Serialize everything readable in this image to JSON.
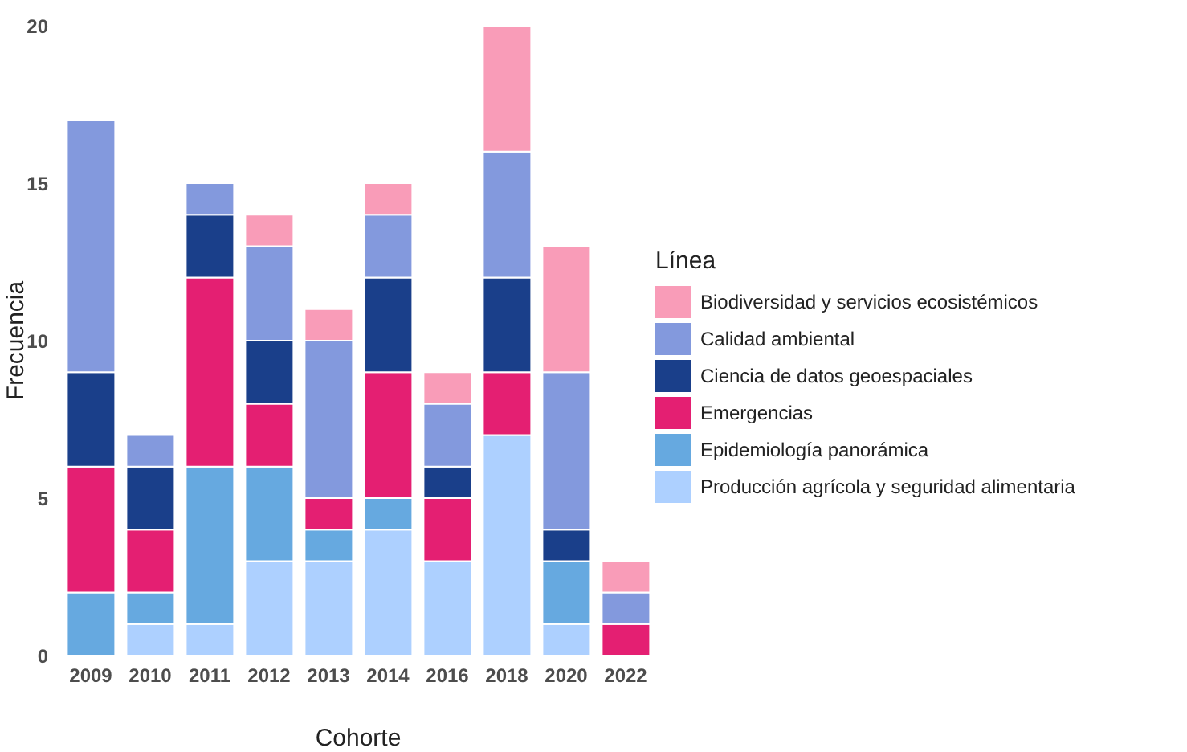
{
  "chart_data": {
    "type": "bar",
    "stacked": true,
    "xlabel": "Cohorte",
    "ylabel": "Frecuencia",
    "legend_title": "Línea",
    "legend": "right",
    "grid": false,
    "categories": [
      "2009",
      "2010",
      "2011",
      "2012",
      "2013",
      "2014",
      "2016",
      "2018",
      "2020",
      "2022"
    ],
    "ylim": [
      0,
      20
    ],
    "yticks": [
      0,
      5,
      10,
      15,
      20
    ],
    "series": [
      {
        "name": "Producción agrícola y seguridad alimentaria",
        "color": "#add0ff",
        "values": [
          0,
          1,
          1,
          3,
          3,
          4,
          3,
          7,
          1,
          0
        ]
      },
      {
        "name": "Epidemiología panorámica",
        "color": "#66a9e0",
        "values": [
          2,
          1,
          5,
          3,
          1,
          1,
          0,
          0,
          2,
          0
        ]
      },
      {
        "name": "Emergencias",
        "color": "#e41f72",
        "values": [
          4,
          2,
          6,
          2,
          1,
          4,
          2,
          2,
          0,
          1
        ]
      },
      {
        "name": "Ciencia de datos geoespaciales",
        "color": "#1a3f8a",
        "values": [
          3,
          2,
          2,
          2,
          0,
          3,
          1,
          3,
          1,
          0
        ]
      },
      {
        "name": "Calidad ambiental",
        "color": "#8399dd",
        "values": [
          8,
          1,
          1,
          3,
          5,
          2,
          2,
          4,
          5,
          1
        ]
      },
      {
        "name": "Biodiversidad y servicios ecosistémicos",
        "color": "#f99cb8",
        "values": [
          0,
          0,
          0,
          1,
          1,
          1,
          1,
          4,
          4,
          1
        ]
      }
    ]
  }
}
